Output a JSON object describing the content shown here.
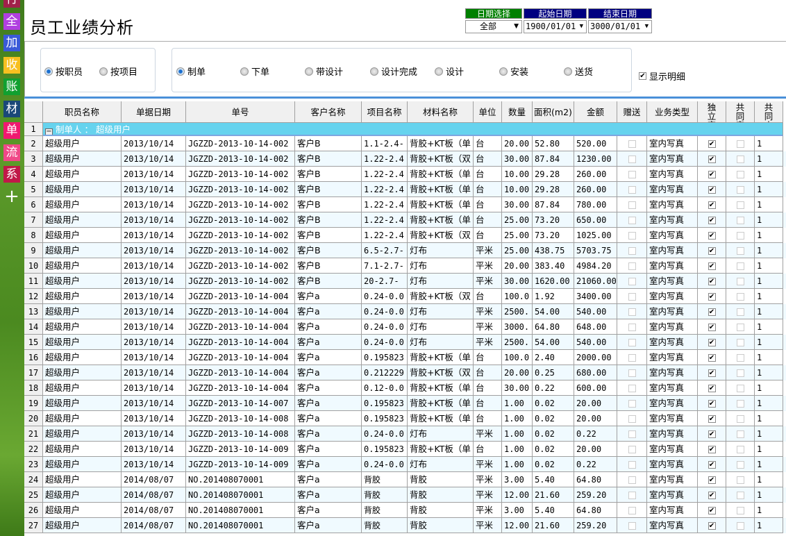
{
  "sidebar": {
    "items": [
      "行",
      "全",
      "加",
      "收",
      "账",
      "材",
      "单",
      "流",
      "系",
      "+"
    ],
    "colors": [
      "#a0204a",
      "#b040e0",
      "#3a5ad8",
      "#f8c020",
      "#10a030",
      "#1a4878",
      "#f01870",
      "#f04888",
      "#c01848",
      "transparent"
    ]
  },
  "title": "员工业绩分析",
  "dates": {
    "labels": [
      "日期选择",
      "起始日期",
      "结束日期"
    ],
    "label_colors": [
      "#008000",
      "#000080",
      "#000080"
    ],
    "values": [
      "全部",
      "1900/01/01",
      "3000/01/01"
    ]
  },
  "filters": {
    "group_by": [
      {
        "label": "按职员",
        "checked": true
      },
      {
        "label": "按项目",
        "checked": false
      }
    ],
    "stages": [
      {
        "label": "制单",
        "checked": true
      },
      {
        "label": "下单",
        "checked": false
      },
      {
        "label": "带设计",
        "checked": false
      },
      {
        "label": "设计完成",
        "checked": false
      },
      {
        "label": "设计",
        "checked": false
      },
      {
        "label": "安装",
        "checked": false
      },
      {
        "label": "送货",
        "checked": false
      }
    ],
    "show_detail": {
      "label": "显示明细",
      "checked": true
    }
  },
  "table": {
    "columns": [
      "职员名称",
      "单据日期",
      "单号",
      "客户名称",
      "项目名称",
      "材料名称",
      "单位",
      "数量",
      "面积(m2)",
      "金额",
      "赠送",
      "业务类型",
      "独立完成",
      "共同完成",
      "共同人数"
    ],
    "group_row": {
      "num": "1",
      "label": "制单人 ： 超级用户"
    },
    "rows": [
      [
        "2",
        "超级用户",
        "2013/10/14",
        "JGZZD-2013-10-14-002",
        "客户B",
        "1.1-2.4-",
        "背胶+KT板（单",
        "台",
        "20.00",
        "52.80",
        "520.00",
        false,
        "室内写真",
        true,
        false,
        "1"
      ],
      [
        "3",
        "超级用户",
        "2013/10/14",
        "JGZZD-2013-10-14-002",
        "客户B",
        "1.22-2.4",
        "背胶+KT板（双",
        "台",
        "30.00",
        "87.84",
        "1230.00",
        false,
        "室内写真",
        true,
        false,
        "1"
      ],
      [
        "4",
        "超级用户",
        "2013/10/14",
        "JGZZD-2013-10-14-002",
        "客户B",
        "1.22-2.4",
        "背胶+KT板（单",
        "台",
        "10.00",
        "29.28",
        "260.00",
        false,
        "室内写真",
        true,
        false,
        "1"
      ],
      [
        "5",
        "超级用户",
        "2013/10/14",
        "JGZZD-2013-10-14-002",
        "客户B",
        "1.22-2.4",
        "背胶+KT板（单",
        "台",
        "10.00",
        "29.28",
        "260.00",
        false,
        "室内写真",
        true,
        false,
        "1"
      ],
      [
        "6",
        "超级用户",
        "2013/10/14",
        "JGZZD-2013-10-14-002",
        "客户B",
        "1.22-2.4",
        "背胶+KT板（单",
        "台",
        "30.00",
        "87.84",
        "780.00",
        false,
        "室内写真",
        true,
        false,
        "1"
      ],
      [
        "7",
        "超级用户",
        "2013/10/14",
        "JGZZD-2013-10-14-002",
        "客户B",
        "1.22-2.4",
        "背胶+KT板（单",
        "台",
        "25.00",
        "73.20",
        "650.00",
        false,
        "室内写真",
        true,
        false,
        "1"
      ],
      [
        "8",
        "超级用户",
        "2013/10/14",
        "JGZZD-2013-10-14-002",
        "客户B",
        "1.22-2.4",
        "背胶+KT板（双",
        "台",
        "25.00",
        "73.20",
        "1025.00",
        false,
        "室内写真",
        true,
        false,
        "1"
      ],
      [
        "9",
        "超级用户",
        "2013/10/14",
        "JGZZD-2013-10-14-002",
        "客户B",
        "6.5-2.7-",
        "灯布",
        "平米",
        "25.00",
        "438.75",
        "5703.75",
        false,
        "室内写真",
        true,
        false,
        "1"
      ],
      [
        "10",
        "超级用户",
        "2013/10/14",
        "JGZZD-2013-10-14-002",
        "客户B",
        "7.1-2.7-",
        "灯布",
        "平米",
        "20.00",
        "383.40",
        "4984.20",
        false,
        "室内写真",
        true,
        false,
        "1"
      ],
      [
        "11",
        "超级用户",
        "2013/10/14",
        "JGZZD-2013-10-14-002",
        "客户B",
        "20-2.7-",
        "灯布",
        "平米",
        "30.00",
        "1620.00",
        "21060.00",
        false,
        "室内写真",
        true,
        false,
        "1"
      ],
      [
        "12",
        "超级用户",
        "2013/10/14",
        "JGZZD-2013-10-14-004",
        "客户a",
        "0.24-0.0",
        "背胶+KT板（双",
        "台",
        "100.0",
        "1.92",
        "3400.00",
        false,
        "室内写真",
        true,
        false,
        "1"
      ],
      [
        "13",
        "超级用户",
        "2013/10/14",
        "JGZZD-2013-10-14-004",
        "客户a",
        "0.24-0.0",
        "灯布",
        "平米",
        "2500.",
        "54.00",
        "540.00",
        false,
        "室内写真",
        true,
        false,
        "1"
      ],
      [
        "14",
        "超级用户",
        "2013/10/14",
        "JGZZD-2013-10-14-004",
        "客户a",
        "0.24-0.0",
        "灯布",
        "平米",
        "3000.",
        "64.80",
        "648.00",
        false,
        "室内写真",
        true,
        false,
        "1"
      ],
      [
        "15",
        "超级用户",
        "2013/10/14",
        "JGZZD-2013-10-14-004",
        "客户a",
        "0.24-0.0",
        "灯布",
        "平米",
        "2500.",
        "54.00",
        "540.00",
        false,
        "室内写真",
        true,
        false,
        "1"
      ],
      [
        "16",
        "超级用户",
        "2013/10/14",
        "JGZZD-2013-10-14-004",
        "客户a",
        "0.195823",
        "背胶+KT板（单",
        "台",
        "100.0",
        "2.40",
        "2000.00",
        false,
        "室内写真",
        true,
        false,
        "1"
      ],
      [
        "17",
        "超级用户",
        "2013/10/14",
        "JGZZD-2013-10-14-004",
        "客户a",
        "0.212229",
        "背胶+KT板（双",
        "台",
        "20.00",
        "0.25",
        "680.00",
        false,
        "室内写真",
        true,
        false,
        "1"
      ],
      [
        "18",
        "超级用户",
        "2013/10/14",
        "JGZZD-2013-10-14-004",
        "客户a",
        "0.12-0.0",
        "背胶+KT板（单",
        "台",
        "30.00",
        "0.22",
        "600.00",
        false,
        "室内写真",
        true,
        false,
        "1"
      ],
      [
        "19",
        "超级用户",
        "2013/10/14",
        "JGZZD-2013-10-14-007",
        "客户a",
        "0.195823",
        "背胶+KT板（单",
        "台",
        "1.00",
        "0.02",
        "20.00",
        false,
        "室内写真",
        true,
        false,
        "1"
      ],
      [
        "20",
        "超级用户",
        "2013/10/14",
        "JGZZD-2013-10-14-008",
        "客户a",
        "0.195823",
        "背胶+KT板（单",
        "台",
        "1.00",
        "0.02",
        "20.00",
        false,
        "室内写真",
        true,
        false,
        "1"
      ],
      [
        "21",
        "超级用户",
        "2013/10/14",
        "JGZZD-2013-10-14-008",
        "客户a",
        "0.24-0.0",
        "灯布",
        "平米",
        "1.00",
        "0.02",
        "0.22",
        false,
        "室内写真",
        true,
        false,
        "1"
      ],
      [
        "22",
        "超级用户",
        "2013/10/14",
        "JGZZD-2013-10-14-009",
        "客户a",
        "0.195823",
        "背胶+KT板（单",
        "台",
        "1.00",
        "0.02",
        "20.00",
        false,
        "室内写真",
        true,
        false,
        "1"
      ],
      [
        "23",
        "超级用户",
        "2013/10/14",
        "JGZZD-2013-10-14-009",
        "客户a",
        "0.24-0.0",
        "灯布",
        "平米",
        "1.00",
        "0.02",
        "0.22",
        false,
        "室内写真",
        true,
        false,
        "1"
      ],
      [
        "24",
        "超级用户",
        "2014/08/07",
        "NO.201408070001",
        "客户a",
        "背胶",
        "背胶",
        "平米",
        "3.00",
        "5.40",
        "64.80",
        false,
        "室内写真",
        true,
        false,
        "1"
      ],
      [
        "25",
        "超级用户",
        "2014/08/07",
        "NO.201408070001",
        "客户a",
        "背胶",
        "背胶",
        "平米",
        "12.00",
        "21.60",
        "259.20",
        false,
        "室内写真",
        true,
        false,
        "1"
      ],
      [
        "26",
        "超级用户",
        "2014/08/07",
        "NO.201408070001",
        "客户a",
        "背胶",
        "背胶",
        "平米",
        "3.00",
        "5.40",
        "64.80",
        false,
        "室内写真",
        true,
        false,
        "1"
      ],
      [
        "27",
        "超级用户",
        "2014/08/07",
        "NO.201408070001",
        "客户a",
        "背胶",
        "背胶",
        "平米",
        "12.00",
        "21.60",
        "259.20",
        false,
        "室内写真",
        true,
        false,
        "1"
      ]
    ]
  }
}
